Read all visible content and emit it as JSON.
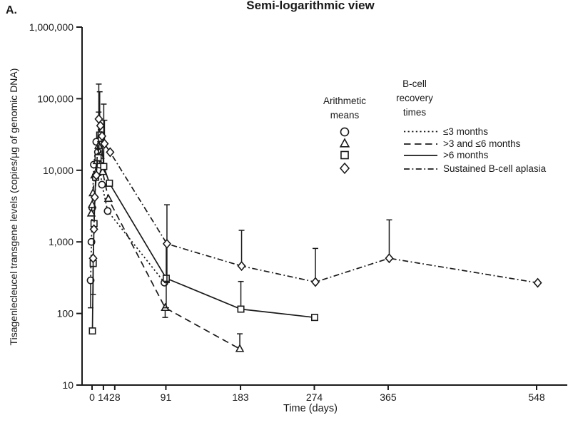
{
  "figure": {
    "panel_label": "A."
  },
  "legend": {
    "symbols_header": "Arithmetic means",
    "lines_header": "B-cell recovery times",
    "items": [
      "≤3 months",
      ">3 and ≤6 months",
      ">6 months",
      "Sustained B-cell aplasia"
    ]
  },
  "chart_data": {
    "type": "line",
    "title": "Semi-logarithmic view",
    "xlabel": "Time (days)",
    "ylabel": "Tisagenlecleucel transgene levels (copies/μg of genomic DNA)",
    "y_scale": "log10",
    "ylim": [
      10,
      1000000
    ],
    "xlim": [
      -12,
      585
    ],
    "grid": false,
    "legend_position": "upper-right-inside",
    "x_ticks": [
      {
        "value": 0,
        "label": "0"
      },
      {
        "value": 14,
        "label": "14"
      },
      {
        "value": 28,
        "label": "28"
      },
      {
        "value": 91,
        "label": "91"
      },
      {
        "value": 183,
        "label": "183"
      },
      {
        "value": 274,
        "label": "274"
      },
      {
        "value": 365,
        "label": "365"
      },
      {
        "value": 548,
        "label": "548"
      }
    ],
    "y_ticks": [
      {
        "value": 10,
        "label": "10"
      },
      {
        "value": 100,
        "label": "100"
      },
      {
        "value": 1000,
        "label": "1,000"
      },
      {
        "value": 10000,
        "label": "10,000"
      },
      {
        "value": 100000,
        "label": "100,000"
      },
      {
        "value": 1000000,
        "label": "1,000,000"
      }
    ],
    "series": [
      {
        "name": "≤3 months",
        "marker": "circle",
        "line_style": "dotted",
        "points": [
          {
            "x": 0,
            "y": 290,
            "lo": 120
          },
          {
            "x": 1,
            "y": 1000
          },
          {
            "x": 2,
            "y": 3000
          },
          {
            "x": 4,
            "y": 12000
          },
          {
            "x": 7,
            "y": 25000
          },
          {
            "x": 9,
            "y": 18000
          },
          {
            "x": 11,
            "y": 12000
          },
          {
            "x": 14,
            "y": 6300
          },
          {
            "x": 21,
            "y": 2700
          },
          {
            "x": 91,
            "y": 270
          }
        ]
      },
      {
        "name": ">3 and ≤6 months",
        "marker": "triangle",
        "line_style": "dashed",
        "points": [
          {
            "x": 0,
            "y": 2500
          },
          {
            "x": 1,
            "y": 3300
          },
          {
            "x": 2,
            "y": 4800
          },
          {
            "x": 4,
            "y": 8500
          },
          {
            "x": 7,
            "y": 13500
          },
          {
            "x": 9,
            "y": 22000,
            "hi": 65000
          },
          {
            "x": 11,
            "y": 16000
          },
          {
            "x": 14,
            "y": 9500
          },
          {
            "x": 21,
            "y": 4000
          },
          {
            "x": 91,
            "y": 120,
            "lo": 88
          },
          {
            "x": 183,
            "y": 32,
            "hi": 52
          }
        ]
      },
      {
        "name": ">6 months",
        "marker": "square",
        "line_style": "solid",
        "points": [
          {
            "x": 0,
            "y": 57
          },
          {
            "x": 1,
            "y": 500
          },
          {
            "x": 2,
            "y": 1800
          },
          {
            "x": 4,
            "y": 8000
          },
          {
            "x": 7,
            "y": 15000
          },
          {
            "x": 9,
            "y": 31000,
            "hi": 125000
          },
          {
            "x": 11,
            "y": 28000
          },
          {
            "x": 14,
            "y": 11300,
            "hi": 84000
          },
          {
            "x": 21,
            "y": 6600
          },
          {
            "x": 91,
            "y": 310,
            "hi": 940,
            "lo": 120
          },
          {
            "x": 183,
            "y": 115,
            "hi": 280
          },
          {
            "x": 274,
            "y": 88
          }
        ]
      },
      {
        "name": "Sustained B-cell aplasia",
        "marker": "diamond",
        "line_style": "dashdot",
        "points": [
          {
            "x": 0,
            "y": 590,
            "lo": 185
          },
          {
            "x": 1,
            "y": 1500
          },
          {
            "x": 2,
            "y": 4200
          },
          {
            "x": 4,
            "y": 8500
          },
          {
            "x": 7,
            "y": 52000,
            "hi": 160000
          },
          {
            "x": 9,
            "y": 42000
          },
          {
            "x": 11,
            "y": 30000
          },
          {
            "x": 14,
            "y": 23500,
            "hi": 50000
          },
          {
            "x": 21,
            "y": 17900
          },
          {
            "x": 91,
            "y": 940,
            "hi": 3300,
            "lo": 270
          },
          {
            "x": 183,
            "y": 460,
            "hi": 1450
          },
          {
            "x": 274,
            "y": 275,
            "hi": 810
          },
          {
            "x": 365,
            "y": 590,
            "hi": 2030
          },
          {
            "x": 548,
            "y": 268
          }
        ]
      }
    ]
  }
}
